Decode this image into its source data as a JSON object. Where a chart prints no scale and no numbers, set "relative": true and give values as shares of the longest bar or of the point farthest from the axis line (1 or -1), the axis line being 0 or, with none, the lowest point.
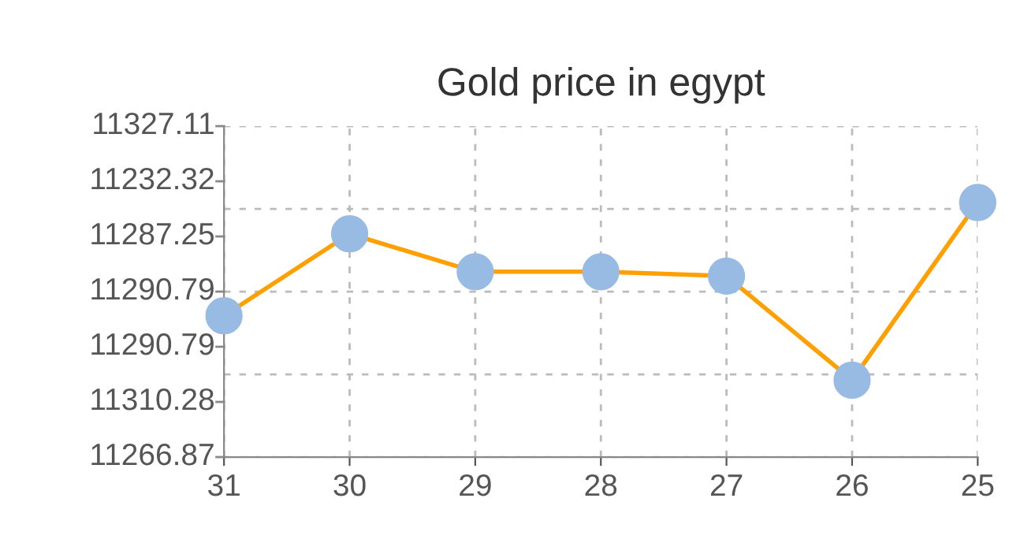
{
  "chart_data": {
    "type": "line",
    "title": "Gold price in egypt",
    "categories": [
      "31",
      "30",
      "29",
      "28",
      "27",
      "26",
      "25"
    ],
    "series": [
      {
        "color": "#ffa000",
        "values": [
          0.555,
          0.877,
          0.728,
          0.728,
          0.711,
          0.302,
          1
        ]
      }
    ],
    "relative": true,
    "annotations": [
      "11327.11",
      "11232.32",
      "11287.25",
      "11290.79",
      "11290.79",
      "11310.28",
      "11266.87"
    ],
    "grid": true,
    "marker": "circle",
    "line_style": "solid"
  }
}
